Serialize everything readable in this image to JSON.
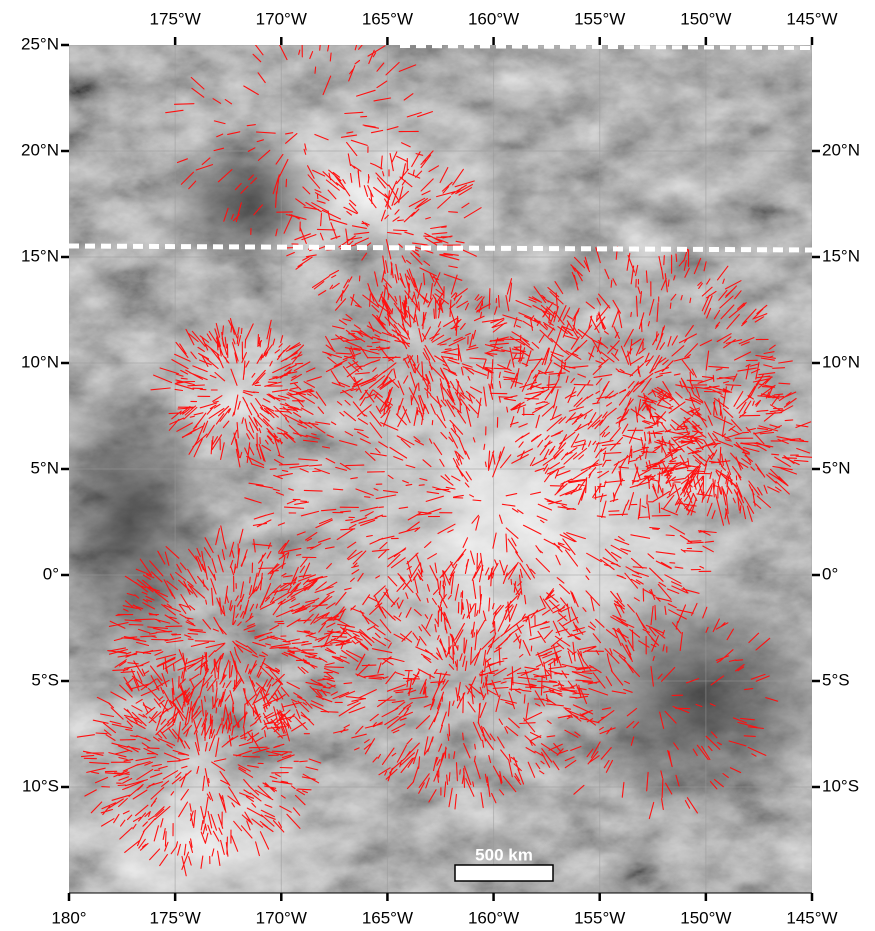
{
  "map": {
    "xlim": [
      -180,
      -145
    ],
    "ylim": [
      -15,
      25
    ],
    "top_ticks": [
      {
        "value": -175,
        "label": "175°W"
      },
      {
        "value": -170,
        "label": "170°W"
      },
      {
        "value": -165,
        "label": "165°W"
      },
      {
        "value": -160,
        "label": "160°W"
      },
      {
        "value": -155,
        "label": "155°W"
      },
      {
        "value": -150,
        "label": "150°W"
      },
      {
        "value": -145,
        "label": "145°W"
      }
    ],
    "bottom_ticks": [
      {
        "value": -180,
        "label": "180°"
      },
      {
        "value": -175,
        "label": "175°W"
      },
      {
        "value": -170,
        "label": "170°W"
      },
      {
        "value": -165,
        "label": "165°W"
      },
      {
        "value": -160,
        "label": "160°W"
      },
      {
        "value": -155,
        "label": "155°W"
      },
      {
        "value": -150,
        "label": "150°W"
      },
      {
        "value": -145,
        "label": "145°W"
      }
    ],
    "left_ticks": [
      {
        "value": 25,
        "label": "25°N"
      },
      {
        "value": 20,
        "label": "20°N"
      },
      {
        "value": 15,
        "label": "15°N"
      },
      {
        "value": 10,
        "label": "10°N"
      },
      {
        "value": 5,
        "label": "5°N"
      },
      {
        "value": 0,
        "label": "0°"
      },
      {
        "value": -5,
        "label": "5°S"
      },
      {
        "value": -10,
        "label": "10°S"
      }
    ],
    "right_ticks": [
      {
        "value": 20,
        "label": "20°N"
      },
      {
        "value": 15,
        "label": "15°N"
      },
      {
        "value": 10,
        "label": "10°N"
      },
      {
        "value": 5,
        "label": "5°N"
      },
      {
        "value": 0,
        "label": "0°"
      },
      {
        "value": -5,
        "label": "5°S"
      },
      {
        "value": -10,
        "label": "10°S"
      }
    ],
    "scale_bar": "500 km"
  }
}
